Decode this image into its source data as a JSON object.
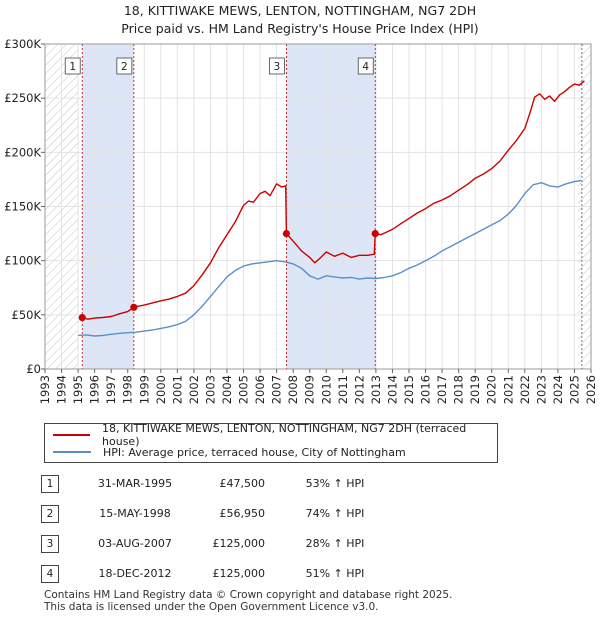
{
  "title_line1": "18, KITTIWAKE MEWS, LENTON, NOTTINGHAM, NG7 2DH",
  "title_line2": "Price paid vs. HM Land Registry's House Price Index (HPI)",
  "chart_data": {
    "type": "line",
    "title": "18, KITTIWAKE MEWS, LENTON, NOTTINGHAM, NG7 2DH — Price paid vs. HM Land Registry's House Price Index (HPI)",
    "xlim": [
      1993,
      2026
    ],
    "ylim": [
      0,
      300000
    ],
    "x_ticks": [
      1993,
      1994,
      1995,
      1996,
      1997,
      1998,
      1999,
      2000,
      2001,
      2002,
      2003,
      2004,
      2005,
      2006,
      2007,
      2008,
      2009,
      2010,
      2011,
      2012,
      2013,
      2014,
      2015,
      2016,
      2017,
      2018,
      2019,
      2020,
      2021,
      2022,
      2023,
      2024,
      2025,
      2026
    ],
    "y_ticks": [
      0,
      50000,
      100000,
      150000,
      200000,
      250000,
      300000
    ],
    "y_tick_labels": [
      "£0",
      "£50K",
      "£100K",
      "£150K",
      "£200K",
      "£250K",
      "£300K"
    ],
    "colors": {
      "property": "#cc0000",
      "hpi": "#5b8fcc",
      "band": "#dde6f7",
      "vline": "#cc0000",
      "hatch": "#bbbbbb"
    },
    "shaded_ranges": [
      [
        1995.25,
        1998.37
      ],
      [
        2007.59,
        2012.96
      ]
    ],
    "hatched_ranges": [
      [
        1993,
        1995.0
      ],
      [
        2025.2,
        2026
      ]
    ],
    "series": [
      {
        "name": "18, KITTIWAKE MEWS, LENTON, NOTTINGHAM, NG7 2DH (terraced house)",
        "x": [
          1995.25,
          1995.6,
          1996.0,
          1996.5,
          1997.0,
          1997.5,
          1998.0,
          1998.37,
          1998.5,
          1999.0,
          1999.5,
          2000.0,
          2000.5,
          2001.0,
          2001.5,
          2002.0,
          2002.5,
          2003.0,
          2003.5,
          2004.0,
          2004.5,
          2005.0,
          2005.3,
          2005.6,
          2006.0,
          2006.3,
          2006.6,
          2007.0,
          2007.3,
          2007.55,
          2007.59,
          2008.0,
          2008.5,
          2009.0,
          2009.3,
          2009.6,
          2010.0,
          2010.5,
          2011.0,
          2011.5,
          2012.0,
          2012.5,
          2012.9,
          2012.96,
          2013.3,
          2013.6,
          2014.0,
          2014.5,
          2015.0,
          2015.5,
          2016.0,
          2016.5,
          2017.0,
          2017.5,
          2018.0,
          2018.5,
          2019.0,
          2019.5,
          2020.0,
          2020.5,
          2021.0,
          2021.5,
          2022.0,
          2022.3,
          2022.6,
          2022.9,
          2023.2,
          2023.5,
          2023.8,
          2024.1,
          2024.4,
          2024.7,
          2025.0,
          2025.3,
          2025.6
        ],
        "values": [
          47500,
          46000,
          47000,
          47500,
          48500,
          51000,
          53000,
          56950,
          57500,
          59000,
          61000,
          63000,
          64500,
          67000,
          70000,
          77000,
          87000,
          98000,
          112000,
          124000,
          136000,
          151000,
          155000,
          154000,
          162000,
          164000,
          160000,
          171000,
          168000,
          169000,
          125000,
          118000,
          109000,
          103000,
          98000,
          102000,
          108000,
          104000,
          107000,
          103000,
          105000,
          105000,
          106000,
          125000,
          124000,
          126000,
          129000,
          134000,
          139000,
          144000,
          148000,
          153000,
          156000,
          160000,
          165000,
          170000,
          176000,
          180000,
          185000,
          192000,
          202000,
          211000,
          222000,
          236000,
          251000,
          254000,
          249000,
          252000,
          247000,
          253000,
          256000,
          260000,
          263000,
          262000,
          266000
        ]
      },
      {
        "name": "HPI: Average price, terraced house, City of Nottingham",
        "x": [
          1995.0,
          1995.5,
          1996.0,
          1996.5,
          1997.0,
          1997.5,
          1998.0,
          1998.5,
          1999.0,
          1999.5,
          2000.0,
          2000.5,
          2001.0,
          2001.5,
          2002.0,
          2002.5,
          2003.0,
          2003.5,
          2004.0,
          2004.5,
          2005.0,
          2005.5,
          2006.0,
          2006.5,
          2007.0,
          2007.5,
          2008.0,
          2008.5,
          2009.0,
          2009.5,
          2010.0,
          2010.5,
          2011.0,
          2011.5,
          2012.0,
          2012.5,
          2013.0,
          2013.5,
          2014.0,
          2014.5,
          2015.0,
          2015.5,
          2016.0,
          2016.5,
          2017.0,
          2017.5,
          2018.0,
          2018.5,
          2019.0,
          2019.5,
          2020.0,
          2020.5,
          2021.0,
          2021.5,
          2022.0,
          2022.5,
          2023.0,
          2023.5,
          2024.0,
          2024.5,
          2025.0,
          2025.4
        ],
        "values": [
          31000,
          31500,
          30500,
          31000,
          32000,
          33000,
          33500,
          34000,
          35000,
          36000,
          37500,
          39000,
          41000,
          44000,
          50000,
          58000,
          67000,
          76000,
          85000,
          91000,
          95000,
          97000,
          98000,
          99000,
          100000,
          99000,
          97000,
          93000,
          86000,
          83000,
          86000,
          85000,
          84000,
          84500,
          83000,
          84000,
          83500,
          84500,
          86000,
          89000,
          93000,
          96000,
          100000,
          104000,
          109000,
          113000,
          117000,
          121000,
          125000,
          129000,
          133000,
          137000,
          143000,
          151000,
          162000,
          170000,
          172000,
          169000,
          168000,
          171000,
          173000,
          174000
        ]
      }
    ],
    "sales": [
      {
        "id": "1",
        "x": 1995.25,
        "value": 47500
      },
      {
        "id": "2",
        "x": 1998.37,
        "value": 56950
      },
      {
        "id": "3",
        "x": 2007.59,
        "value": 125000
      },
      {
        "id": "4",
        "x": 2012.96,
        "value": 125000
      }
    ]
  },
  "legend": {
    "property": "18, KITTIWAKE MEWS, LENTON, NOTTINGHAM, NG7 2DH (terraced house)",
    "hpi": "HPI: Average price, terraced house, City of Nottingham"
  },
  "sales_table": [
    {
      "id": "1",
      "date": "31-MAR-1995",
      "price": "£47,500",
      "hpi": "53% ↑ HPI"
    },
    {
      "id": "2",
      "date": "15-MAY-1998",
      "price": "£56,950",
      "hpi": "74% ↑ HPI"
    },
    {
      "id": "3",
      "date": "03-AUG-2007",
      "price": "£125,000",
      "hpi": "28% ↑ HPI"
    },
    {
      "id": "4",
      "date": "18-DEC-2012",
      "price": "£125,000",
      "hpi": "51% ↑ HPI"
    }
  ],
  "footer_line1": "Contains HM Land Registry data © Crown copyright and database right 2025.",
  "footer_line2": "This data is licensed under the Open Government Licence v3.0."
}
